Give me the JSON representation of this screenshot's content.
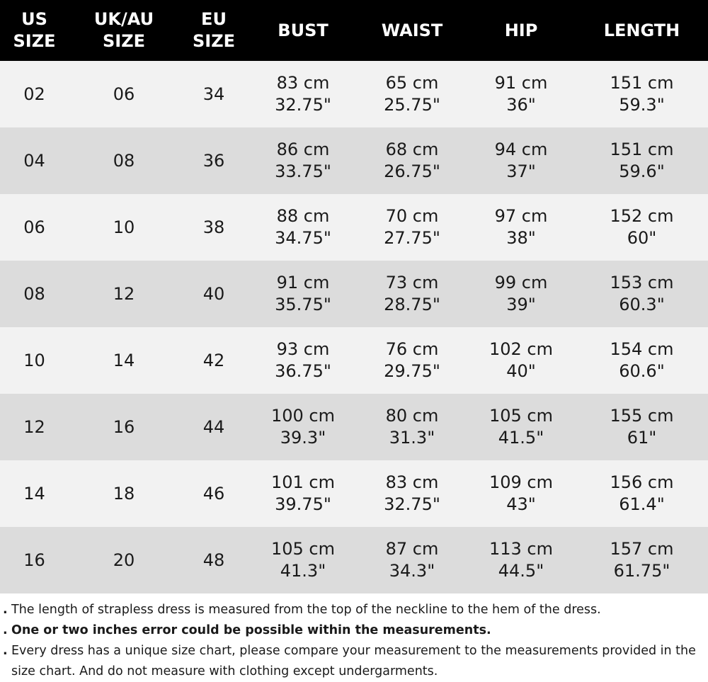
{
  "headers": {
    "us": [
      "US",
      "SIZE"
    ],
    "uk": [
      "UK/AU",
      "SIZE"
    ],
    "eu": [
      "EU",
      "SIZE"
    ],
    "bust": "BUST",
    "waist": "WAIST",
    "hip": "HIP",
    "length": "LENGTH"
  },
  "rows": [
    {
      "us": "02",
      "uk": "06",
      "eu": "34",
      "bust_cm": "83 cm",
      "bust_in": "32.75\"",
      "waist_cm": "65 cm",
      "waist_in": "25.75\"",
      "hip_cm": "91 cm",
      "hip_in": "36\"",
      "len_cm": "151 cm",
      "len_in": "59.3\""
    },
    {
      "us": "04",
      "uk": "08",
      "eu": "36",
      "bust_cm": "86 cm",
      "bust_in": "33.75\"",
      "waist_cm": "68 cm",
      "waist_in": "26.75\"",
      "hip_cm": "94 cm",
      "hip_in": "37\"",
      "len_cm": "151 cm",
      "len_in": "59.6\""
    },
    {
      "us": "06",
      "uk": "10",
      "eu": "38",
      "bust_cm": "88 cm",
      "bust_in": "34.75\"",
      "waist_cm": "70 cm",
      "waist_in": "27.75\"",
      "hip_cm": "97 cm",
      "hip_in": "38\"",
      "len_cm": "152 cm",
      "len_in": "60\""
    },
    {
      "us": "08",
      "uk": "12",
      "eu": "40",
      "bust_cm": "91 cm",
      "bust_in": "35.75\"",
      "waist_cm": "73 cm",
      "waist_in": "28.75\"",
      "hip_cm": "99 cm",
      "hip_in": "39\"",
      "len_cm": "153 cm",
      "len_in": "60.3\""
    },
    {
      "us": "10",
      "uk": "14",
      "eu": "42",
      "bust_cm": "93 cm",
      "bust_in": "36.75\"",
      "waist_cm": "76 cm",
      "waist_in": "29.75\"",
      "hip_cm": "102 cm",
      "hip_in": "40\"",
      "len_cm": "154 cm",
      "len_in": "60.6\""
    },
    {
      "us": "12",
      "uk": "16",
      "eu": "44",
      "bust_cm": "100 cm",
      "bust_in": "39.3\"",
      "waist_cm": "80 cm",
      "waist_in": "31.3\"",
      "hip_cm": "105 cm",
      "hip_in": "41.5\"",
      "len_cm": "155 cm",
      "len_in": "61\""
    },
    {
      "us": "14",
      "uk": "18",
      "eu": "46",
      "bust_cm": "101 cm",
      "bust_in": "39.75\"",
      "waist_cm": "83 cm",
      "waist_in": "32.75\"",
      "hip_cm": "109 cm",
      "hip_in": "43\"",
      "len_cm": "156 cm",
      "len_in": "61.4\""
    },
    {
      "us": "16",
      "uk": "20",
      "eu": "48",
      "bust_cm": "105 cm",
      "bust_in": "41.3\"",
      "waist_cm": "87 cm",
      "waist_in": "34.3\"",
      "hip_cm": "113 cm",
      "hip_in": "44.5\"",
      "len_cm": "157 cm",
      "len_in": "61.75\""
    }
  ],
  "notes": [
    {
      "bullet": ".",
      "text": "The length of strapless dress is measured from the top of the neckline to the hem of the dress.",
      "bold": false
    },
    {
      "bullet": ".",
      "text": "One or two inches error could be possible within the measurements.",
      "bold": true
    },
    {
      "bullet": ".",
      "text": "Every dress has a unique size chart, please compare your measurement to the measurements provided in the size chart. And do not measure with clothing except undergarments.",
      "bold": false
    }
  ],
  "colors": {
    "header_bg": "#000000",
    "header_text": "#ffffff",
    "row_light": "#f2f2f2",
    "row_dark": "#dcdcdc"
  }
}
